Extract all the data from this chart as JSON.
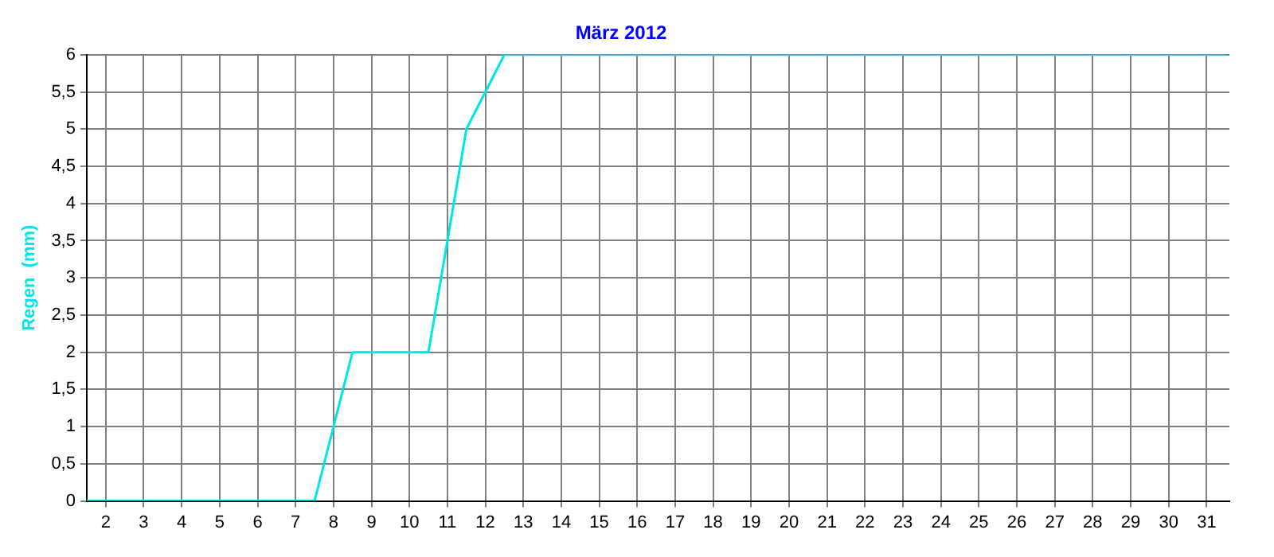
{
  "chart_data": {
    "type": "line",
    "title": "März 2012",
    "ylabel": "Regen  (mm)",
    "x": [
      1.5,
      7.5,
      8.5,
      10.5,
      11.5,
      12.5,
      31.5
    ],
    "series": [
      {
        "color": "#00e6e6",
        "values": [
          0,
          0,
          2,
          2,
          5,
          6,
          6
        ]
      }
    ],
    "xlim": [
      1.5,
      31.6
    ],
    "xticks": [
      2,
      3,
      4,
      5,
      6,
      7,
      8,
      9,
      10,
      11,
      12,
      13,
      14,
      15,
      16,
      17,
      18,
      19,
      20,
      21,
      22,
      23,
      24,
      25,
      26,
      27,
      28,
      29,
      30,
      31
    ],
    "ylim": [
      0,
      6
    ],
    "yticks": [
      0,
      {
        "value": 0.5,
        "label": "0,5"
      },
      1,
      {
        "value": 1.5,
        "label": "1,5"
      },
      2,
      {
        "value": 2.5,
        "label": "2,5"
      },
      3,
      {
        "value": 3.5,
        "label": "3,5"
      },
      4,
      {
        "value": 4.5,
        "label": "4,5"
      },
      5,
      {
        "value": 5.5,
        "label": "5,5"
      },
      6
    ],
    "grid": true,
    "legend": false,
    "marker": "none",
    "line_style": "solid"
  }
}
